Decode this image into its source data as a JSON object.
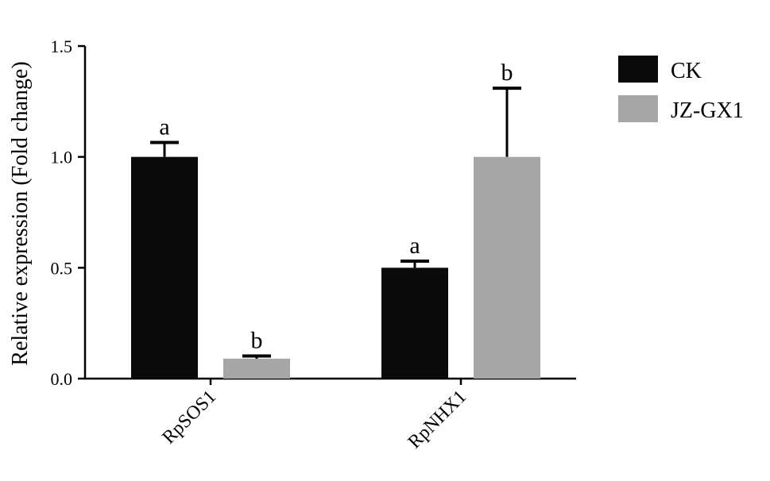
{
  "chart_data": {
    "type": "bar",
    "title": "",
    "xlabel": "",
    "ylabel": "Relative expression (Fold change)",
    "ylim": [
      0,
      1.5
    ],
    "yticks": [
      0.0,
      0.5,
      1.0,
      1.5
    ],
    "ytick_labels": [
      "0.0",
      "0.5",
      "1.0",
      "1.5"
    ],
    "categories": [
      "RpSOS1",
      "RpNHX1"
    ],
    "series": [
      {
        "name": "CK",
        "color": "#0a0a0a",
        "values": [
          1.0,
          0.5
        ],
        "errors": [
          0.065,
          0.03
        ],
        "significance": [
          "a",
          "a"
        ]
      },
      {
        "name": "JZ-GX1",
        "color": "#a6a6a6",
        "values": [
          0.09,
          1.0
        ],
        "errors": [
          0.012,
          0.31
        ],
        "significance": [
          "b",
          "b"
        ]
      }
    ],
    "legend_position": "top-right",
    "grid": false
  }
}
